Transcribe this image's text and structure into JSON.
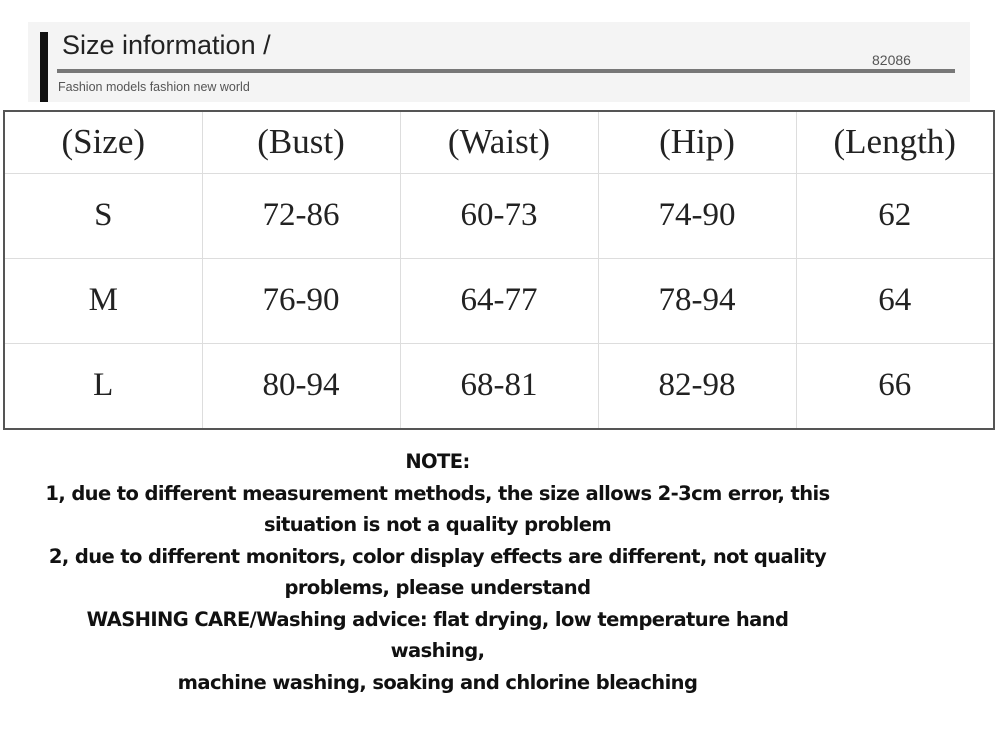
{
  "header": {
    "title": "Size information /",
    "code": "82086",
    "subtitle": "Fashion models fashion new world"
  },
  "table": {
    "columns": [
      "(Size)",
      "(Bust)",
      "(Waist)",
      "(Hip)",
      "(Length)"
    ],
    "rows": [
      [
        "S",
        "72-86",
        "60-73",
        "74-90",
        "62"
      ],
      [
        "M",
        "76-90",
        "64-77",
        "78-94",
        "64"
      ],
      [
        "L",
        "80-94",
        "68-81",
        "82-98",
        "66"
      ]
    ]
  },
  "note": {
    "title": "NOTE:",
    "lines": [
      "1, due to different measurement methods, the size allows 2-3cm error, this",
      "situation is not a quality problem",
      "2, due to different monitors, color display effects are different, not quality",
      "problems, please understand",
      "WASHING CARE/Washing advice: flat drying, low temperature hand washing,",
      "machine washing, soaking and chlorine bleaching"
    ]
  }
}
